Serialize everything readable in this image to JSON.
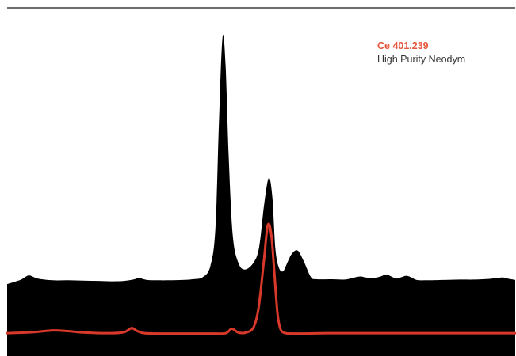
{
  "chart_data": {
    "type": "line",
    "title": "",
    "xlabel": "",
    "ylabel": "",
    "grid": false,
    "legend_position": "top-right",
    "x_range": [
      0,
      100
    ],
    "y_range": [
      0,
      100
    ],
    "series": [
      {
        "name": "High Purity Neodym",
        "color": "#000000",
        "style": "filled-area",
        "x": [
          0,
          2.6,
          3.4,
          4.4,
          6.0,
          9.0,
          12.0,
          15.0,
          18.0,
          21.0,
          23.0,
          24.8,
          26.0,
          27.5,
          29.5,
          32.0,
          34.5,
          36.5,
          38.5,
          40.0,
          41.0,
          41.7,
          42.4,
          43.0,
          43.6,
          44.4,
          45.5,
          46.8,
          48.5,
          49.6,
          50.6,
          51.5,
          52.2,
          52.8,
          53.5,
          54.3,
          55.0,
          56.0,
          57.2,
          58.5,
          59.8,
          61.0,
          64.0,
          66.5,
          68.0,
          69.5,
          70.6,
          72.0,
          73.5,
          74.6,
          75.6,
          76.6,
          77.6,
          78.6,
          79.6,
          80.6,
          82.5,
          86.0,
          89.0,
          92.0,
          95.0,
          97.5,
          98.8,
          100
        ],
        "y": [
          20.8,
          22.0,
          22.7,
          23.3,
          22.4,
          21.9,
          21.9,
          21.8,
          21.7,
          21.6,
          21.7,
          22.1,
          22.5,
          22.0,
          21.9,
          21.9,
          22.0,
          22.2,
          22.8,
          26.0,
          37.0,
          68.0,
          92.2,
          84.0,
          58.0,
          35.0,
          27.0,
          25.0,
          27.0,
          31.5,
          44.0,
          51.5,
          46.0,
          31.0,
          25.5,
          24.5,
          26.5,
          29.5,
          30.5,
          27.0,
          22.8,
          22.2,
          22.2,
          22.1,
          22.6,
          23.0,
          22.7,
          22.5,
          23.0,
          23.6,
          23.0,
          22.4,
          22.8,
          23.2,
          22.7,
          22.0,
          21.9,
          22.0,
          22.1,
          22.1,
          22.3,
          22.7,
          22.3,
          22.0
        ]
      },
      {
        "name": "Ce 401.239",
        "color": "#d9392b",
        "style": "line",
        "x": [
          0,
          5.0,
          9.0,
          12.0,
          15.0,
          20.0,
          23.0,
          24.5,
          25.5,
          27.0,
          30.0,
          34.0,
          40.0,
          43.0,
          44.2,
          45.5,
          47.0,
          48.5,
          49.5,
          50.5,
          51.3,
          52.0,
          52.6,
          53.2,
          53.8,
          54.6,
          55.8,
          58.0,
          63.0,
          70.0,
          80.0,
          90.0,
          100
        ],
        "y": [
          6.6,
          6.9,
          7.4,
          7.2,
          6.8,
          6.6,
          6.9,
          8.1,
          7.3,
          6.6,
          6.5,
          6.5,
          6.5,
          6.6,
          7.9,
          6.8,
          6.8,
          8.3,
          14.0,
          27.0,
          37.8,
          35.0,
          24.0,
          12.5,
          7.8,
          6.7,
          6.5,
          6.5,
          6.6,
          6.6,
          6.6,
          6.6,
          6.6
        ]
      }
    ]
  },
  "legend": {
    "line1": "Ce 401.239",
    "line2": "High Purity Neodym"
  },
  "colors": {
    "spectrum_fill": "#000000",
    "ce_line": "#d9392b",
    "legend_ce_text": "#e8553a",
    "legend_sample_text": "#333333",
    "top_rule": "#6e6e6e"
  }
}
